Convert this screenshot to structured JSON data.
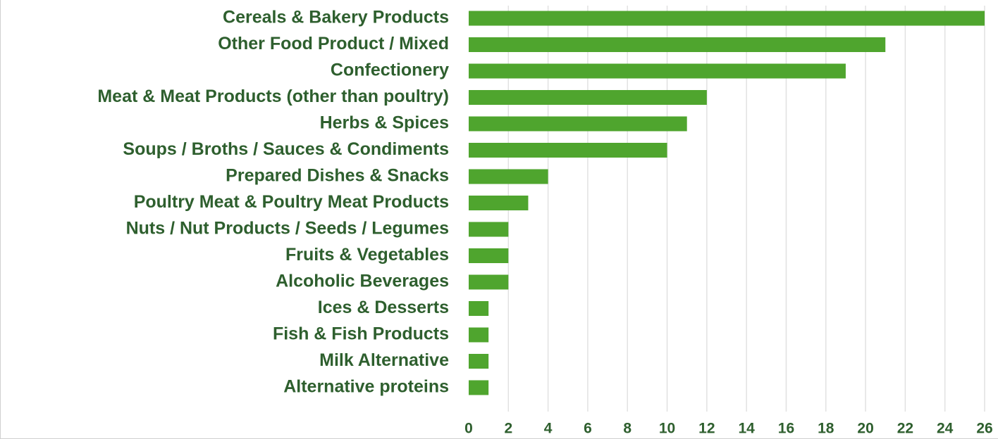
{
  "colors": {
    "bar": "#4fa52e",
    "text": "#2e5f2e",
    "grid": "#e1e1e1"
  },
  "chart_data": {
    "type": "bar",
    "orientation": "horizontal",
    "categories": [
      "Cereals & Bakery Products",
      "Other Food Product / Mixed",
      "Confectionery",
      "Meat & Meat Products (other than poultry)",
      "Herbs & Spices",
      "Soups /  Broths / Sauces & Condiments",
      "Prepared Dishes & Snacks",
      "Poultry Meat & Poultry Meat Products",
      "Nuts / Nut Products / Seeds / Legumes",
      "Fruits & Vegetables",
      "Alcoholic Beverages",
      "Ices & Desserts",
      "Fish & Fish Products",
      "Milk Alternative",
      "Alternative proteins"
    ],
    "values": [
      26,
      21,
      19,
      12,
      11,
      10,
      4,
      3,
      2,
      2,
      2,
      1,
      1,
      1,
      1
    ],
    "x_ticks": [
      0,
      2,
      4,
      6,
      8,
      10,
      12,
      14,
      16,
      18,
      20,
      22,
      24,
      26
    ],
    "xlim": [
      0,
      26
    ],
    "grid": "vertical",
    "legend": "none",
    "title": "",
    "xlabel": "",
    "ylabel": ""
  }
}
